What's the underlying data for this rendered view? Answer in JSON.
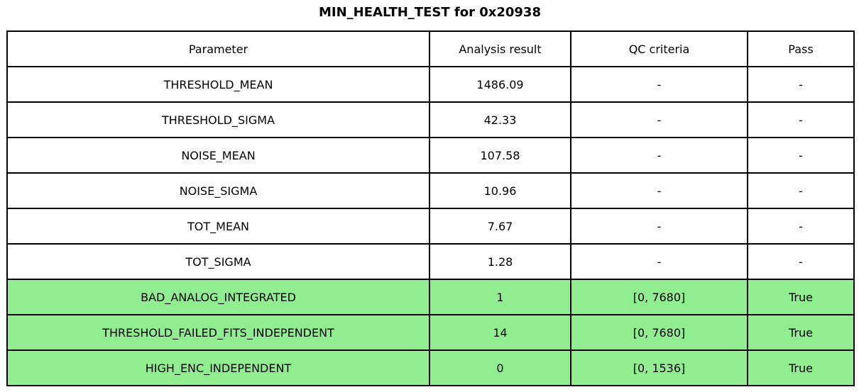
{
  "title": "MIN_HEALTH_TEST for 0x20938",
  "chart_data": {
    "type": "table",
    "title": "MIN_HEALTH_TEST for 0x20938",
    "columns": [
      "Parameter",
      "Analysis result",
      "QC criteria",
      "Pass"
    ],
    "rows": [
      {
        "cells": [
          "THRESHOLD_MEAN",
          "1486.09",
          "-",
          "-"
        ],
        "highlighted": false
      },
      {
        "cells": [
          "THRESHOLD_SIGMA",
          "42.33",
          "-",
          "-"
        ],
        "highlighted": false
      },
      {
        "cells": [
          "NOISE_MEAN",
          "107.58",
          "-",
          "-"
        ],
        "highlighted": false
      },
      {
        "cells": [
          "NOISE_SIGMA",
          "10.96",
          "-",
          "-"
        ],
        "highlighted": false
      },
      {
        "cells": [
          "TOT_MEAN",
          "7.67",
          "-",
          "-"
        ],
        "highlighted": false
      },
      {
        "cells": [
          "TOT_SIGMA",
          "1.28",
          "-",
          "-"
        ],
        "highlighted": false
      },
      {
        "cells": [
          "BAD_ANALOG_INTEGRATED",
          "1",
          "[0, 7680]",
          "True"
        ],
        "highlighted": true
      },
      {
        "cells": [
          "THRESHOLD_FAILED_FITS_INDEPENDENT",
          "14",
          "[0, 7680]",
          "True"
        ],
        "highlighted": true
      },
      {
        "cells": [
          "HIGH_ENC_INDEPENDENT",
          "0",
          "[0, 1536]",
          "True"
        ],
        "highlighted": true
      }
    ],
    "colors": {
      "pass_row_background": "#90ee90",
      "row_background": "#ffffff",
      "border": "#000000",
      "text": "#000000",
      "page_background": "#ffffff"
    },
    "layout": {
      "grid": "full-borders",
      "highlight_meaning": "row passed QC criteria"
    }
  }
}
